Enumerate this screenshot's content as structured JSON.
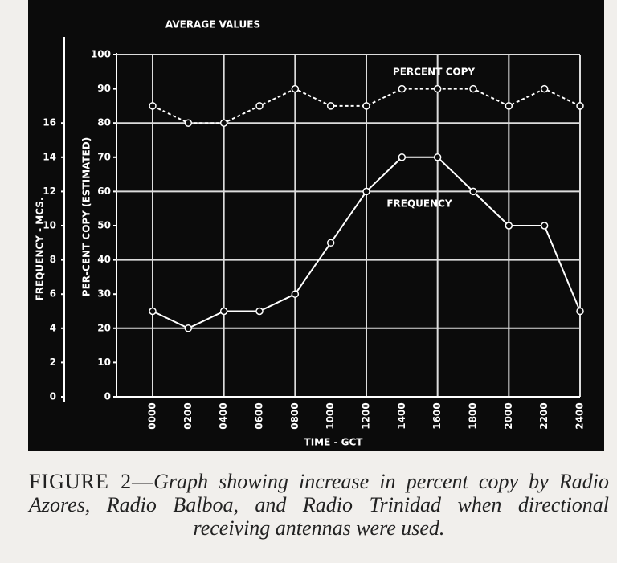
{
  "chart_data": {
    "type": "line",
    "title": "AVERAGE VALUES",
    "x_label": "TIME - GCT",
    "y_label": "PER-CENT COPY (ESTIMATED)",
    "y2_label": "FREQUENCY - MCS.",
    "categories": [
      "0000",
      "0200",
      "0400",
      "0600",
      "0800",
      "1000",
      "1200",
      "1400",
      "1600",
      "1800",
      "2000",
      "2200",
      "2400"
    ],
    "series": [
      {
        "name": "PERCENT COPY",
        "color": "#ffffff",
        "dashed": true,
        "values": [
          85,
          80,
          80,
          85,
          90,
          85,
          85,
          90,
          90,
          90,
          85,
          90,
          85
        ]
      },
      {
        "name": "FREQUENCY",
        "color": "#ffffff",
        "dashed": false,
        "axis": "y2",
        "values": [
          5,
          4,
          5,
          5,
          6,
          9,
          12,
          14,
          14,
          12,
          10,
          10,
          5
        ]
      }
    ],
    "ylim": [
      0,
      100
    ],
    "yticks": [
      0,
      10,
      20,
      30,
      40,
      50,
      60,
      70,
      80,
      90,
      100
    ],
    "y2lim": [
      0,
      20
    ],
    "y2ticks": [
      0,
      2,
      4,
      6,
      8,
      10,
      12,
      14,
      16
    ],
    "grid": true,
    "caption_label": "FIGURE 2—",
    "caption": "Graph showing increase in percent copy by Radio Azores, Radio Balboa, and Radio Trinidad when directional receiving antennas were used."
  }
}
